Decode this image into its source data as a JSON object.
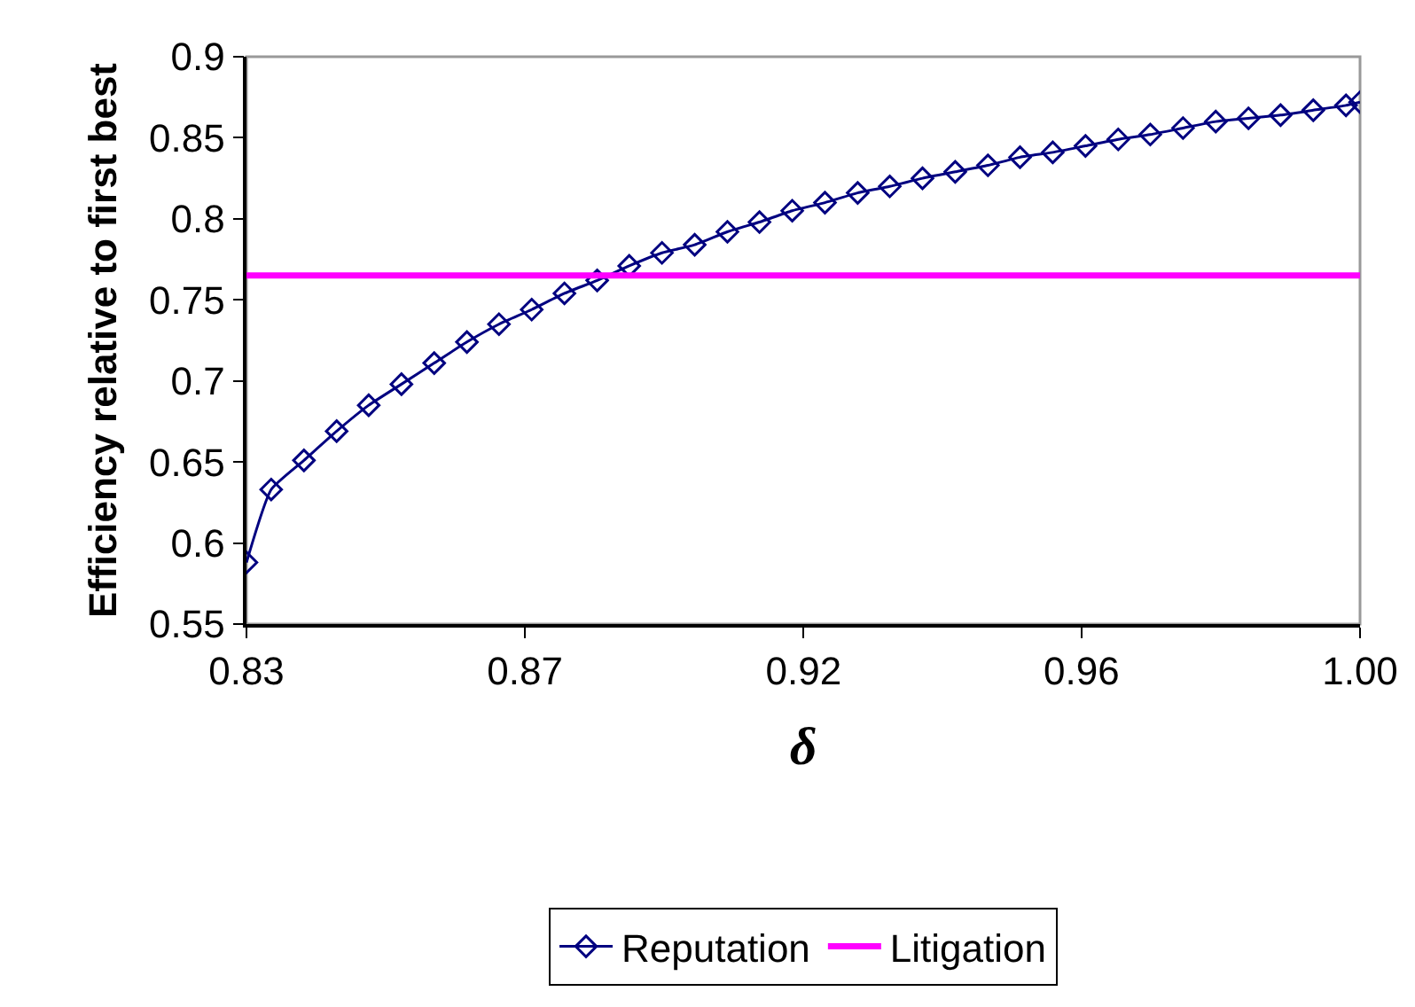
{
  "chart_data": {
    "type": "line",
    "xlabel": "δ",
    "ylabel": "Efficiency relative to first best",
    "xlim": [
      0.8333,
      1.0
    ],
    "xticks": [
      {
        "value": 0.8333,
        "label": "0.83"
      },
      {
        "value": 0.875,
        "label": "0.87"
      },
      {
        "value": 0.9167,
        "label": "0.92"
      },
      {
        "value": 0.9583,
        "label": "0.96"
      },
      {
        "value": 1.0,
        "label": "1.00"
      }
    ],
    "ylim": [
      0.55,
      0.9
    ],
    "yticks": [
      {
        "value": 0.55,
        "label": "0.55"
      },
      {
        "value": 0.6,
        "label": "0.6"
      },
      {
        "value": 0.65,
        "label": "0.65"
      },
      {
        "value": 0.7,
        "label": "0.7"
      },
      {
        "value": 0.75,
        "label": "0.75"
      },
      {
        "value": 0.8,
        "label": "0.8"
      },
      {
        "value": 0.85,
        "label": "0.85"
      },
      {
        "value": 0.9,
        "label": "0.9"
      }
    ],
    "grid": false,
    "legend": "bottom",
    "series": [
      {
        "name": "Reputation",
        "color": "#000080",
        "marker": "diamond",
        "x": [
          0.8333,
          0.837,
          0.8419,
          0.8468,
          0.8516,
          0.8565,
          0.8614,
          0.8663,
          0.8711,
          0.876,
          0.8809,
          0.8858,
          0.8906,
          0.8955,
          0.9004,
          0.9053,
          0.9101,
          0.915,
          0.9199,
          0.9248,
          0.9296,
          0.9345,
          0.9394,
          0.9443,
          0.9491,
          0.954,
          0.9589,
          0.9638,
          0.9686,
          0.9735,
          0.9784,
          0.9833,
          0.9881,
          0.993,
          0.9979,
          1.0
        ],
        "values": [
          0.588,
          0.633,
          0.651,
          0.669,
          0.685,
          0.698,
          0.711,
          0.724,
          0.735,
          0.744,
          0.754,
          0.762,
          0.771,
          0.779,
          0.784,
          0.792,
          0.798,
          0.805,
          0.81,
          0.816,
          0.82,
          0.825,
          0.829,
          0.833,
          0.838,
          0.841,
          0.845,
          0.849,
          0.852,
          0.856,
          0.86,
          0.862,
          0.864,
          0.867,
          0.87,
          0.872
        ]
      },
      {
        "name": "Litigation",
        "color": "#ff00ff",
        "marker": "none",
        "x": [
          0.8333,
          1.0
        ],
        "values": [
          0.765,
          0.765
        ]
      }
    ]
  }
}
